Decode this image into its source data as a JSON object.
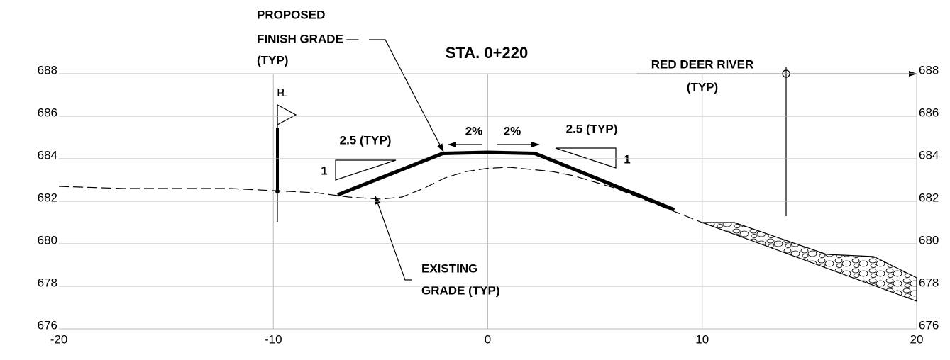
{
  "chart_data": {
    "type": "line",
    "title": "STA. 0+220",
    "annotations": {
      "proposed": [
        "PROPOSED",
        "FINISH GRADE —",
        "(TYP)"
      ],
      "existing": [
        "EXISTING",
        "GRADE (TYP)"
      ],
      "river": [
        "RED DEER RIVER",
        "(TYP)"
      ],
      "slope_left": [
        "2.5 (TYP)",
        "1"
      ],
      "slope_right": [
        "2.5 (TYP)",
        "1"
      ],
      "cross_left": "2%",
      "cross_right": "2%",
      "pl": "PL"
    },
    "xlim": [
      -20,
      20
    ],
    "xticks": [
      -20,
      -10,
      0,
      10,
      20
    ],
    "ylim": [
      676,
      688
    ],
    "yticks": [
      676,
      678,
      680,
      682,
      684,
      686,
      688
    ],
    "grid": true,
    "series": [
      {
        "color": "#000000",
        "style": "dashed",
        "x": [
          -20,
          -17,
          -14,
          -12,
          -10,
          -8,
          -6.5,
          -5,
          -4,
          -3,
          -2,
          -1,
          0,
          1,
          2,
          3,
          4,
          5,
          6,
          7,
          8,
          9,
          10
        ],
        "values": [
          682.7,
          682.6,
          682.6,
          682.6,
          682.5,
          682.4,
          682.2,
          682.1,
          682.2,
          682.6,
          683.1,
          683.4,
          683.55,
          683.6,
          683.5,
          683.4,
          683.2,
          682.9,
          682.6,
          682.2,
          681.8,
          681.4,
          681.0
        ]
      },
      {
        "color": "#000000",
        "style": "thick",
        "x": [
          -7,
          -2.1,
          0,
          2.2,
          8.7
        ],
        "values": [
          682.3,
          684.25,
          684.3,
          684.25,
          681.6
        ]
      },
      {
        "color": "#000000",
        "style": "riprap-top",
        "x": [
          10,
          11.5,
          15.8,
          18,
          20
        ],
        "values": [
          681.0,
          681.0,
          679.5,
          679.4,
          678.4
        ]
      },
      {
        "color": "#000000",
        "style": "riprap-bottom",
        "x": [
          10,
          20
        ],
        "values": [
          681.0,
          677.3
        ]
      }
    ]
  }
}
